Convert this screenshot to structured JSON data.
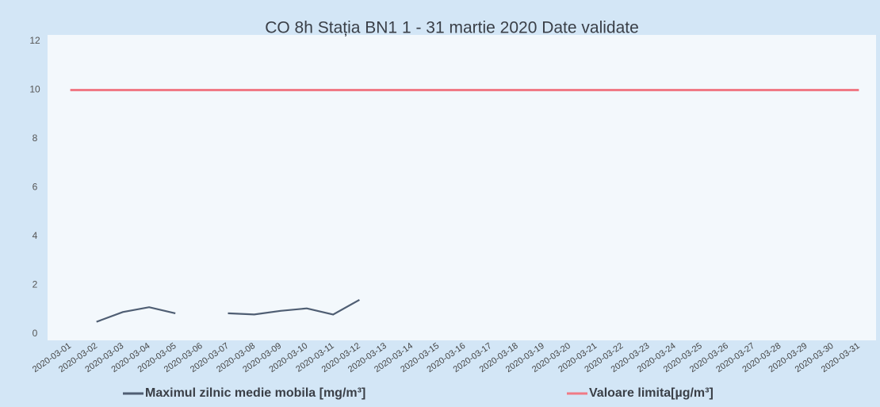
{
  "chart_data": {
    "type": "line",
    "title": "CO 8h Stația BN1 1 - 31 martie 2020 Date validate",
    "categories": [
      "2020-03-01",
      "2020-03-02",
      "2020-03-03",
      "2020-03-04",
      "2020-03-05",
      "2020-03-06",
      "2020-03-07",
      "2020-03-08",
      "2020-03-09",
      "2020-03-10",
      "2020-03-11",
      "2020-03-12",
      "2020-03-13",
      "2020-03-14",
      "2020-03-15",
      "2020-03-16",
      "2020-03-17",
      "2020-03-18",
      "2020-03-19",
      "2020-03-20",
      "2020-03-21",
      "2020-03-22",
      "2020-03-23",
      "2020-03-24",
      "2020-03-25",
      "2020-03-26",
      "2020-03-27",
      "2020-03-28",
      "2020-03-29",
      "2020-03-30",
      "2020-03-31"
    ],
    "series": [
      {
        "name": "Maximul zilnic medie mobila [mg/m³]",
        "color": "#4f5e73",
        "values": [
          null,
          0.5,
          0.9,
          1.1,
          0.85,
          null,
          0.85,
          0.8,
          0.95,
          1.05,
          0.8,
          1.4,
          null,
          null,
          null,
          null,
          null,
          null,
          null,
          null,
          null,
          null,
          null,
          null,
          null,
          null,
          null,
          null,
          null,
          null,
          null
        ]
      },
      {
        "name": "Valoare limita[µg/m³]",
        "color": "#f07a86",
        "values": [
          10,
          10,
          10,
          10,
          10,
          10,
          10,
          10,
          10,
          10,
          10,
          10,
          10,
          10,
          10,
          10,
          10,
          10,
          10,
          10,
          10,
          10,
          10,
          10,
          10,
          10,
          10,
          10,
          10,
          10,
          10
        ]
      }
    ],
    "ylim": [
      0,
      12
    ],
    "yticks": [
      0,
      2,
      4,
      6,
      8,
      10,
      12
    ],
    "grid": false,
    "legend": "bottom"
  }
}
